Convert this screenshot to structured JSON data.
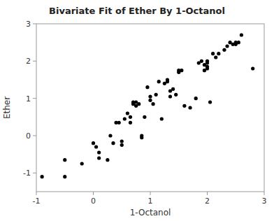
{
  "chart_data": {
    "type": "scatter",
    "title": "Bivariate Fit of Ether By 1-Octanol",
    "x_label": "1-Octanol",
    "y_label": "Ether",
    "color": "#000000",
    "grid": false,
    "xlim": [
      -1,
      3
    ],
    "ylim": [
      -1.5,
      3
    ],
    "xticks": [
      -1,
      0,
      1,
      2,
      3
    ],
    "yticks": [
      -1,
      0,
      1,
      2,
      3
    ],
    "x": [
      -0.9,
      -0.5,
      -0.5,
      -0.2,
      0.0,
      0.05,
      0.1,
      0.1,
      0.25,
      0.3,
      0.35,
      0.4,
      0.45,
      0.5,
      0.5,
      0.55,
      0.6,
      0.65,
      0.65,
      0.7,
      0.7,
      0.75,
      0.75,
      0.8,
      0.85,
      0.85,
      0.9,
      0.95,
      1.0,
      1.0,
      1.05,
      1.1,
      1.15,
      1.2,
      1.25,
      1.3,
      1.3,
      1.35,
      1.35,
      1.4,
      1.45,
      1.5,
      1.5,
      1.55,
      1.6,
      1.7,
      1.8,
      1.85,
      1.9,
      1.95,
      1.95,
      2.0,
      2.0,
      2.0,
      2.0,
      2.05,
      2.1,
      2.15,
      2.2,
      2.3,
      2.35,
      2.4,
      2.45,
      2.5,
      2.5,
      2.55,
      2.6,
      2.8
    ],
    "y": [
      -1.1,
      -1.1,
      -0.65,
      -0.75,
      -0.2,
      -0.3,
      -0.6,
      -0.45,
      -0.65,
      0.0,
      -0.2,
      0.35,
      0.35,
      -0.15,
      -0.25,
      0.45,
      0.6,
      0.35,
      0.5,
      0.85,
      0.9,
      0.9,
      0.8,
      0.85,
      0.0,
      -0.05,
      0.5,
      1.3,
      0.95,
      1.05,
      0.85,
      1.1,
      1.45,
      0.45,
      1.4,
      1.5,
      1.45,
      1.2,
      1.05,
      1.25,
      1.1,
      1.7,
      1.75,
      1.75,
      0.8,
      0.75,
      1.0,
      1.95,
      2.0,
      1.75,
      1.9,
      1.95,
      2.0,
      1.85,
      1.8,
      0.9,
      2.2,
      2.1,
      2.2,
      2.3,
      2.4,
      2.5,
      2.45,
      2.45,
      2.5,
      2.5,
      2.7,
      1.8
    ]
  }
}
